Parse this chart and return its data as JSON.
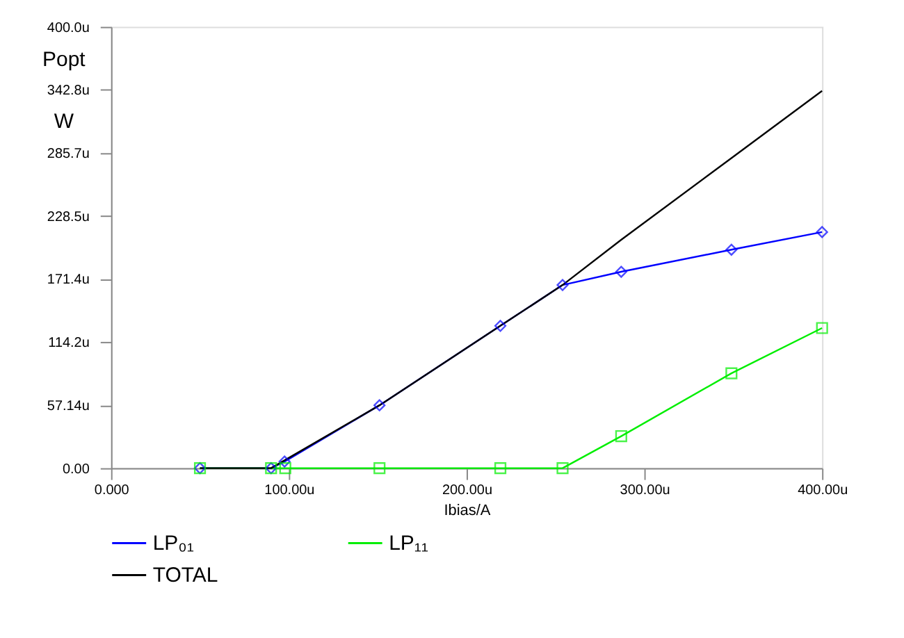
{
  "chart_data": {
    "type": "line",
    "xlabel": "Ibias/A",
    "ylabel": "Popt W",
    "xlim": [
      0,
      400
    ],
    "ylim": [
      0,
      400
    ],
    "xticks": [
      {
        "value": 0,
        "label": "0.000"
      },
      {
        "value": 100,
        "label": "100.00u"
      },
      {
        "value": 200,
        "label": "200.00u"
      },
      {
        "value": 300,
        "label": "300.00u"
      },
      {
        "value": 400,
        "label": "400.00u"
      }
    ],
    "yticks": [
      {
        "value": 0,
        "label": "0.00"
      },
      {
        "value": 57.14,
        "label": "57.14u"
      },
      {
        "value": 114.2,
        "label": "114.2u"
      },
      {
        "value": 171.43,
        "label": "171.4u"
      },
      {
        "value": 228.5,
        "label": "228.5u"
      },
      {
        "value": 285.71,
        "label": "285.7u"
      },
      {
        "value": 342.8,
        "label": "342.8u"
      },
      {
        "value": 400,
        "label": "400.0u"
      }
    ],
    "grid": false,
    "legend": "bottom",
    "series": [
      {
        "name": "LP₀₁",
        "color": "#0000ff",
        "marker": "diamond",
        "x": [
          50,
          90,
          97.6,
          151,
          219,
          254,
          287,
          349,
          400
        ],
        "values": [
          0,
          0,
          6,
          57,
          129,
          166,
          178,
          198,
          214
        ]
      },
      {
        "name": "LP₁₁",
        "color": "#00ee00",
        "marker": "square",
        "x": [
          50,
          90,
          98,
          151,
          219,
          254,
          287,
          349,
          400
        ],
        "values": [
          0,
          0,
          0,
          0,
          0,
          0,
          29,
          86,
          127
        ]
      },
      {
        "name": "TOTAL",
        "color": "#000000",
        "marker": "none",
        "x": [
          50,
          90,
          151,
          219,
          254,
          287,
          349,
          400
        ],
        "values": [
          0,
          0,
          57,
          129,
          166,
          207,
          281,
          342
        ]
      }
    ]
  }
}
